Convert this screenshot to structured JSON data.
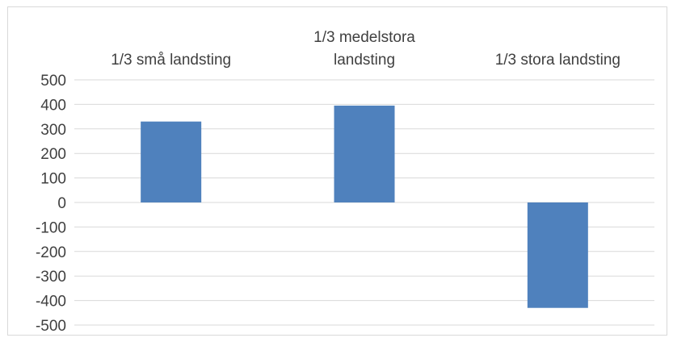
{
  "chart_data": {
    "type": "bar",
    "title": "",
    "xlabel": "",
    "ylabel": "",
    "categories": [
      "1/3 små landsting",
      "1/3 medelstora landsting",
      "1/3 stora landsting"
    ],
    "category_label_lines": [
      [
        "1/3 små landsting"
      ],
      [
        "1/3 medelstora",
        "landsting"
      ],
      [
        "1/3 stora landsting"
      ]
    ],
    "values": [
      330,
      395,
      -430
    ],
    "ylim": [
      -500,
      500
    ],
    "yticks": [
      500,
      400,
      300,
      200,
      100,
      0,
      -100,
      -200,
      -300,
      -400,
      -500
    ],
    "ytick_labels": [
      "500",
      "400",
      "300",
      "200",
      "100",
      "0",
      "-100",
      "-200",
      "-300",
      "-400",
      "-500"
    ],
    "grid": true,
    "legend": "none",
    "category_label_position": "top",
    "bar_color": "#4f81bd",
    "grid_color": "#d9d9d9",
    "text_color": "#404040"
  }
}
